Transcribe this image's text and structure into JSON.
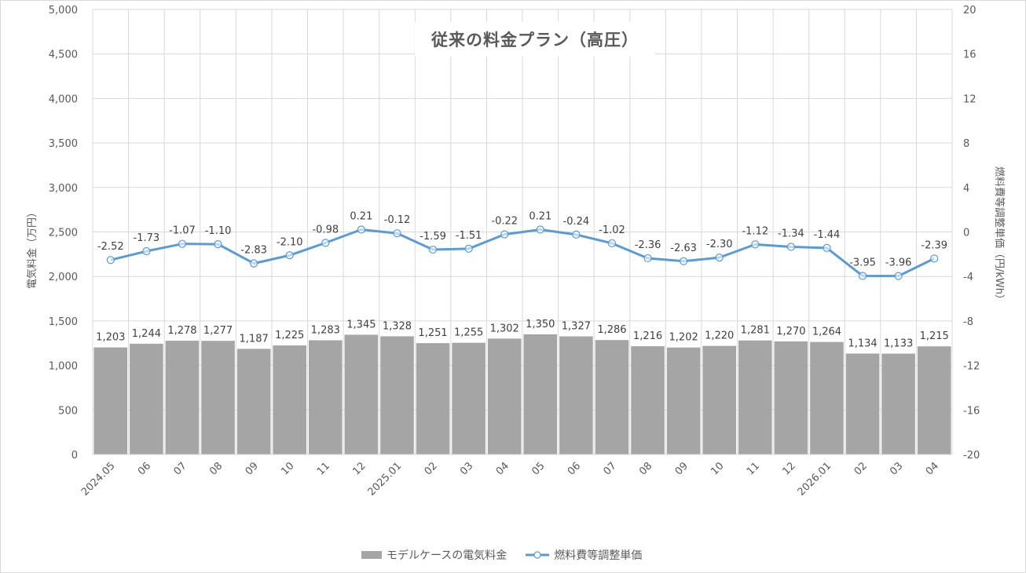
{
  "chart_data": {
    "type": "bar+line",
    "title": "従来の料金プラン（高圧）",
    "categories": [
      "2024.05",
      "06",
      "07",
      "08",
      "09",
      "10",
      "11",
      "12",
      "2025.01",
      "02",
      "03",
      "04",
      "05",
      "06",
      "07",
      "08",
      "09",
      "10",
      "11",
      "12",
      "2026.01",
      "02",
      "03",
      "04"
    ],
    "series": [
      {
        "name": "モデルケースの電気料金",
        "type": "bar",
        "axis": "left",
        "color": "#a5a5a5",
        "values": [
          1203,
          1244,
          1278,
          1277,
          1187,
          1225,
          1283,
          1345,
          1328,
          1251,
          1255,
          1302,
          1350,
          1327,
          1286,
          1216,
          1202,
          1220,
          1281,
          1270,
          1264,
          1134,
          1133,
          1215
        ],
        "labels": [
          "1,203",
          "1,244",
          "1,278",
          "1,277",
          "1,187",
          "1,225",
          "1,283",
          "1,345",
          "1,328",
          "1,251",
          "1,255",
          "1,302",
          "1,350",
          "1,327",
          "1,286",
          "1,216",
          "1,202",
          "1,220",
          "1,281",
          "1,270",
          "1,264",
          "1,134",
          "1,133",
          "1,215"
        ]
      },
      {
        "name": "燃料費等調整単価",
        "type": "line",
        "axis": "right",
        "color": "#5b9bd5",
        "values": [
          -2.52,
          -1.73,
          -1.07,
          -1.1,
          -2.83,
          -2.1,
          -0.98,
          0.21,
          -0.12,
          -1.59,
          -1.51,
          -0.22,
          0.21,
          -0.24,
          -1.02,
          -2.36,
          -2.63,
          -2.3,
          -1.12,
          -1.34,
          -1.44,
          -3.95,
          -3.96,
          -2.39
        ],
        "labels": [
          "-2.52",
          "-1.73",
          "-1.07",
          "-1.10",
          "-2.83",
          "-2.10",
          "-0.98",
          "0.21",
          "-0.12",
          "-1.59",
          "-1.51",
          "-0.22",
          "0.21",
          "-0.24",
          "-1.02",
          "-2.36",
          "-2.63",
          "-2.30",
          "-1.12",
          "-1.34",
          "-1.44",
          "-3.95",
          "-3.96",
          "-2.39"
        ]
      }
    ],
    "ylabel": "電気料金（万円）",
    "ylim": [
      0,
      5000
    ],
    "yticks": [
      "0",
      "500",
      "1,000",
      "1,500",
      "2,000",
      "2,500",
      "3,000",
      "3,500",
      "4,000",
      "4,500",
      "5,000"
    ],
    "y2label": "燃料費等調整単価（円/kWh）",
    "y2lim": [
      -20,
      20
    ],
    "y2ticks": [
      "-20",
      "-16",
      "-12",
      "-8",
      "-4",
      "0",
      "4",
      "8",
      "12",
      "16",
      "20"
    ],
    "xlabel": "",
    "grid": true,
    "legend_position": "bottom"
  }
}
